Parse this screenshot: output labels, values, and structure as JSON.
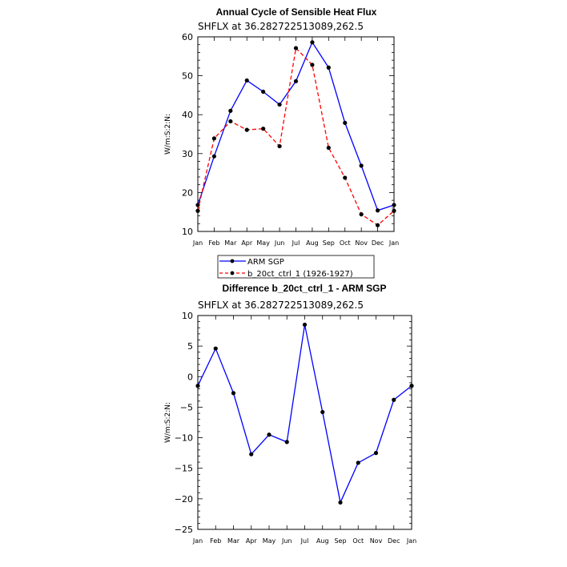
{
  "chart_data": [
    {
      "type": "line",
      "title": "Annual Cycle of Sensible Heat Flux",
      "subtitle": "SHFLX at 36.282722513089,262.5",
      "ylabel": "W/m:S:2:N:",
      "categories": [
        "Jan",
        "Feb",
        "Mar",
        "Apr",
        "May",
        "Jun",
        "Jul",
        "Aug",
        "Sep",
        "Oct",
        "Nov",
        "Dec",
        "Jan"
      ],
      "ylim": [
        10,
        60
      ],
      "yticks": [
        10,
        20,
        30,
        40,
        50,
        60
      ],
      "series": [
        {
          "name": "ARM SGP",
          "color": "#0000ff",
          "dashed": false,
          "values": [
            16.8,
            29.3,
            41.0,
            48.8,
            45.9,
            42.6,
            48.6,
            58.6,
            52.1,
            37.9,
            26.9,
            15.4,
            16.8
          ]
        },
        {
          "name": "b_20ct_ctrl_1 (1926-1927)",
          "color": "#ff0000",
          "dashed": true,
          "values": [
            15.3,
            33.9,
            38.3,
            36.1,
            36.4,
            31.9,
            57.1,
            52.8,
            31.5,
            23.8,
            14.4,
            11.6,
            15.3
          ]
        }
      ]
    },
    {
      "type": "line",
      "title": "Difference b_20ct_ctrl_1 - ARM SGP",
      "subtitle": "SHFLX at 36.282722513089,262.5",
      "ylabel": "W/m:S:2:N:",
      "categories": [
        "Jan",
        "Feb",
        "Mar",
        "Apr",
        "May",
        "Jun",
        "Jul",
        "Aug",
        "Sep",
        "Oct",
        "Nov",
        "Dec",
        "Jan"
      ],
      "ylim": [
        -25,
        10
      ],
      "yticks": [
        -25,
        -20,
        -15,
        -10,
        -5,
        0,
        5,
        10
      ],
      "series": [
        {
          "name": "",
          "color": "#0000ff",
          "dashed": false,
          "values": [
            -1.5,
            4.6,
            -2.7,
            -12.7,
            -9.5,
            -10.7,
            8.5,
            -5.8,
            -20.6,
            -14.1,
            -12.5,
            -3.8,
            -1.5
          ]
        }
      ]
    }
  ]
}
